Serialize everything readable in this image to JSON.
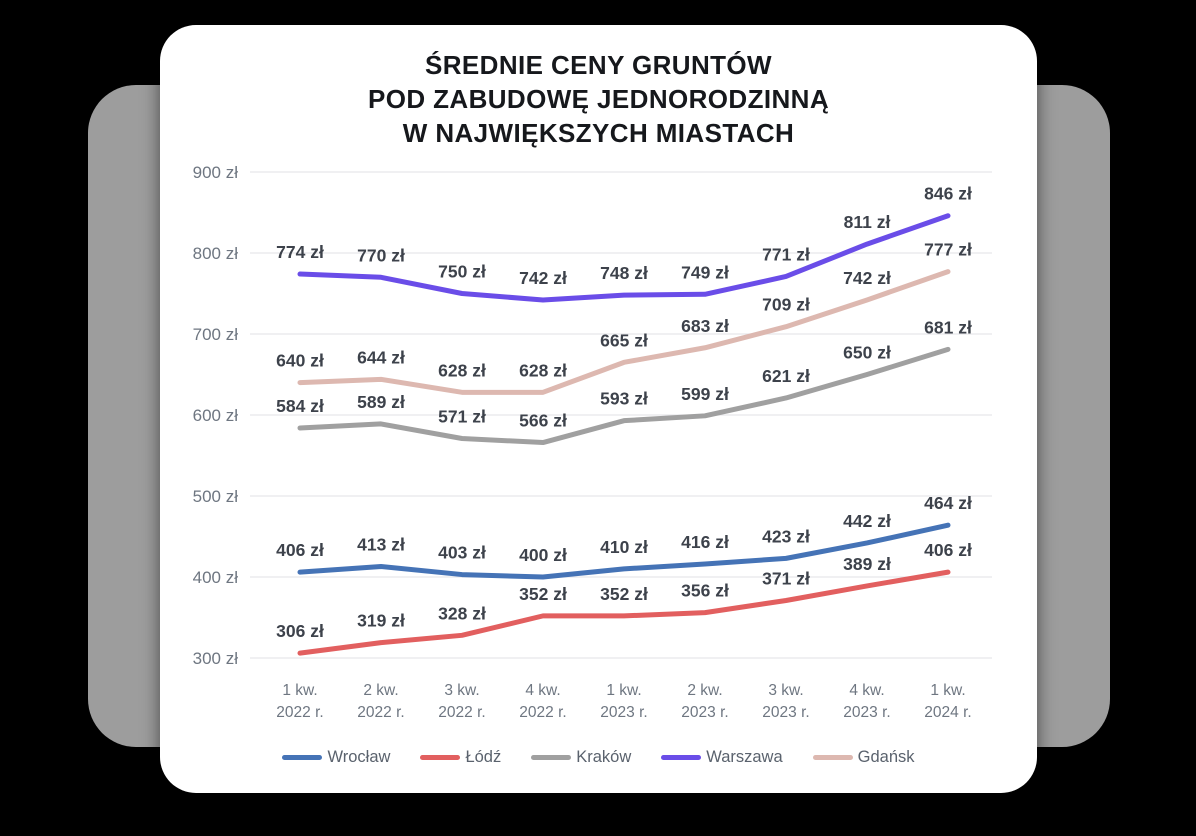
{
  "title": "ŚREDNIE CENY GRUNTÓW\nPOD ZABUDOWĘ JEDNORODZINNĄ\nW NAJWIĘKSZYCH MIASTACH",
  "chart_data": {
    "type": "line",
    "title": "ŚREDNIE CENY GRUNTÓW POD ZABUDOWĘ JEDNORODZINNĄ W NAJWIĘKSZYCH MIASTACH",
    "unit_suffix": " zł",
    "grid": true,
    "legend_position": "bottom",
    "ylim": [
      300,
      900
    ],
    "y_ticks": [
      900,
      800,
      700,
      600,
      500,
      400,
      300
    ],
    "categories": [
      [
        "1 kw.",
        "2022 r."
      ],
      [
        "2 kw.",
        "2022 r."
      ],
      [
        "3 kw.",
        "2022 r."
      ],
      [
        "4 kw.",
        "2022 r."
      ],
      [
        "1 kw.",
        "2023 r."
      ],
      [
        "2 kw.",
        "2023 r."
      ],
      [
        "3 kw.",
        "2023 r."
      ],
      [
        "4 kw.",
        "2023 r."
      ],
      [
        "1 kw.",
        "2024 r."
      ]
    ],
    "series": [
      {
        "id": "wroclaw",
        "name": "Wrocław",
        "color": "#4573b6",
        "values": [
          406,
          413,
          403,
          400,
          410,
          416,
          423,
          442,
          464
        ]
      },
      {
        "id": "lodz",
        "name": "Łódź",
        "color": "#e25f5f",
        "values": [
          306,
          319,
          328,
          352,
          352,
          356,
          371,
          389,
          406
        ]
      },
      {
        "id": "krakow",
        "name": "Kraków",
        "color": "#a0a0a0",
        "values": [
          584,
          589,
          571,
          566,
          593,
          599,
          621,
          650,
          681
        ]
      },
      {
        "id": "warszawa",
        "name": "Warszawa",
        "color": "#6a4de8",
        "values": [
          774,
          770,
          750,
          742,
          748,
          749,
          771,
          811,
          846
        ]
      },
      {
        "id": "gdansk",
        "name": "Gdańsk",
        "color": "#ddb8b0",
        "values": [
          640,
          644,
          628,
          628,
          665,
          683,
          709,
          742,
          777
        ]
      }
    ]
  }
}
